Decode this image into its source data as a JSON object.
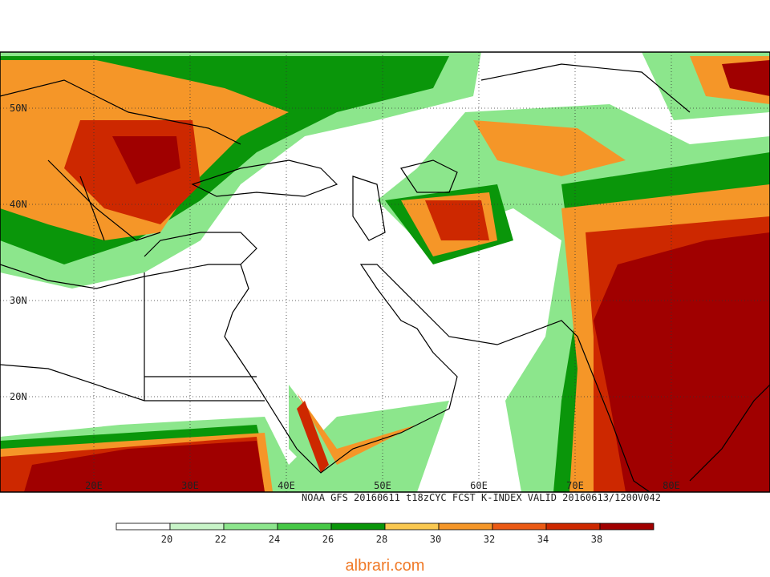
{
  "map": {
    "caption": "NOAA GFS 20160611 t18zCYC FCST K-INDEX   VALID 20160613/1200V042",
    "lat_labels": [
      "50N",
      "40N",
      "30N",
      "20N"
    ],
    "lon_labels": [
      "20E",
      "30E",
      "40E",
      "50E",
      "60E",
      "70E",
      "80E"
    ],
    "colorbar": {
      "levels": [
        20,
        22,
        24,
        26,
        28,
        30,
        32,
        34,
        38
      ],
      "colors": [
        "#ffffff",
        "#c8f5c8",
        "#8ce68c",
        "#46c846",
        "#0a960a",
        "#fac850",
        "#f59628",
        "#eb5a14",
        "#cd2800",
        "#a00000"
      ]
    },
    "watermark": "albrari.com"
  }
}
